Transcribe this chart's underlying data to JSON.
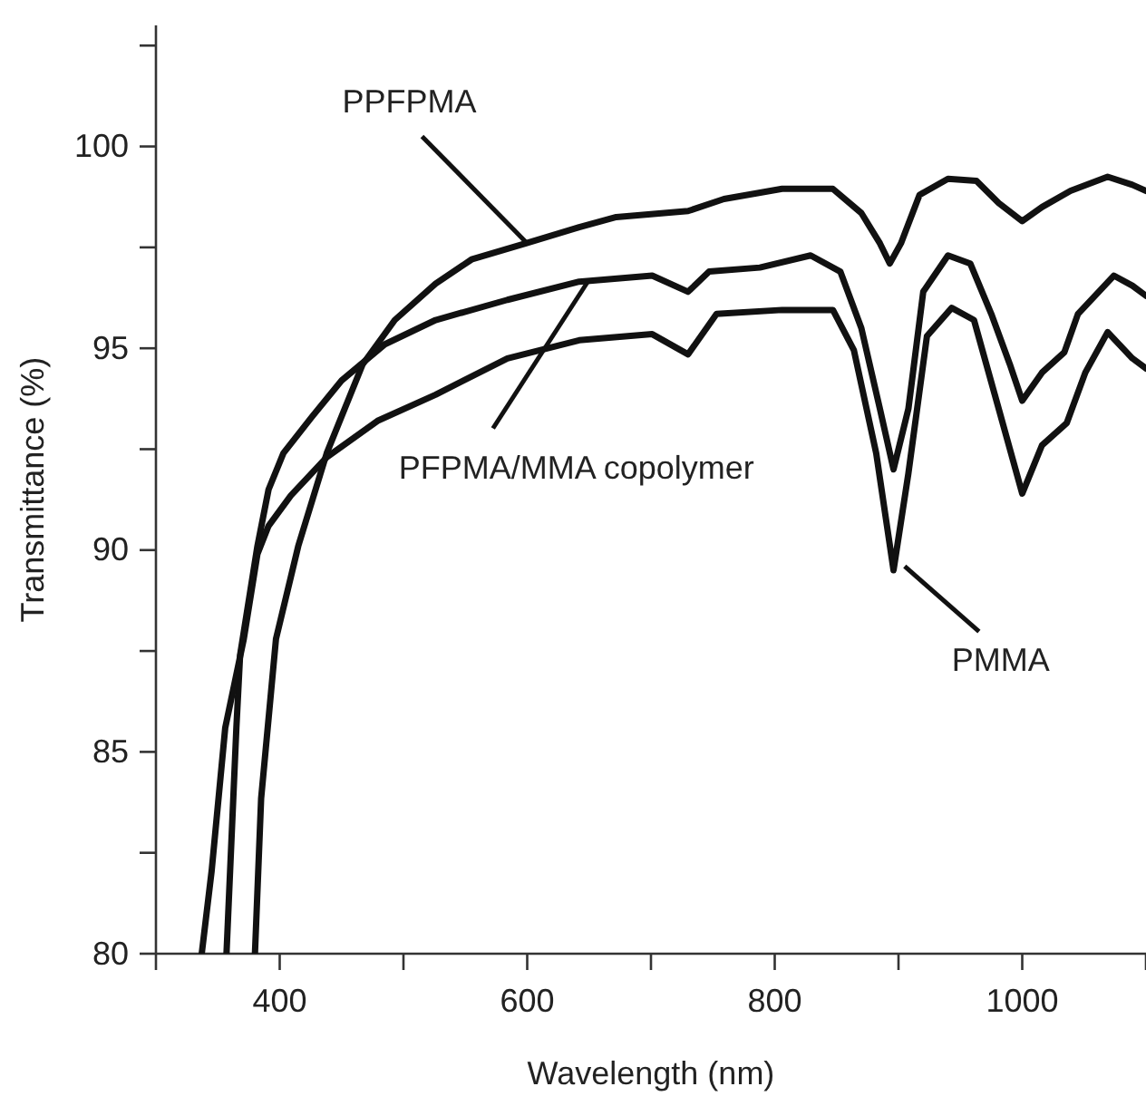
{
  "chart_data": {
    "type": "line",
    "xlabel": "Wavelength (nm)",
    "ylabel": "Transmittance (%)",
    "xlim": [
      300,
      1100
    ],
    "ylim": [
      80,
      103
    ],
    "xticks": [
      {
        "value": 300,
        "label": null
      },
      400,
      {
        "value": 500,
        "label": null
      },
      600,
      {
        "value": 700,
        "label": null
      },
      800,
      {
        "value": 900,
        "label": null
      },
      1000,
      {
        "value": 1100,
        "label": null
      }
    ],
    "yticks": [
      80,
      {
        "value": 82.5,
        "label": null
      },
      85,
      {
        "value": 87.5,
        "label": null
      },
      90,
      {
        "value": 92.5,
        "label": null
      },
      95,
      {
        "value": 97.5,
        "label": null
      },
      100,
      {
        "value": 102.5,
        "label": null
      }
    ],
    "grid": false,
    "marker": "none",
    "line_style": "solid",
    "series": [
      {
        "color": "#111111",
        "x": [
          380,
          385,
          397,
          415,
          438,
          467,
          493,
          526,
          555,
          599,
          642,
          672,
          730,
          759,
          806,
          847,
          870,
          885,
          893,
          902,
          917,
          940,
          963,
          981,
          1000,
          1016,
          1039,
          1069,
          1089,
          1100
        ],
        "values": [
          80,
          83.85,
          87.8,
          90.1,
          92.4,
          94.6,
          95.7,
          96.6,
          97.2,
          97.6,
          98.0,
          98.25,
          98.4,
          98.7,
          98.95,
          98.95,
          98.35,
          97.6,
          97.1,
          97.6,
          98.8,
          99.2,
          99.15,
          98.6,
          98.15,
          98.5,
          98.9,
          99.25,
          99.05,
          98.9
        ]
      },
      {
        "color": "#111111",
        "x": [
          357,
          365,
          368,
          382,
          391,
          403,
          426,
          450,
          485,
          526,
          584,
          642,
          701,
          730,
          747,
          788,
          829,
          853,
          870,
          885,
          896,
          908,
          920,
          940,
          958,
          975,
          990,
          1000,
          1016,
          1034,
          1045,
          1074,
          1089,
          1100
        ],
        "values": [
          80,
          85.6,
          87.4,
          90.1,
          91.5,
          92.4,
          93.3,
          94.2,
          95.1,
          95.7,
          96.2,
          96.65,
          96.8,
          96.4,
          96.9,
          97.0,
          97.3,
          96.9,
          95.5,
          93.5,
          92.0,
          93.5,
          96.4,
          97.3,
          97.1,
          95.85,
          94.6,
          93.7,
          94.4,
          94.9,
          95.85,
          96.8,
          96.55,
          96.3
        ]
      },
      {
        "color": "#111111",
        "x": [
          337,
          345,
          356,
          371,
          382,
          391,
          409,
          438,
          479,
          526,
          584,
          642,
          701,
          730,
          753,
          806,
          847,
          864,
          882,
          896,
          908,
          923,
          943,
          961,
          981,
          1000,
          1016,
          1036,
          1051,
          1069,
          1089,
          1100
        ],
        "values": [
          80,
          82.05,
          85.6,
          87.8,
          89.9,
          90.6,
          91.35,
          92.3,
          93.2,
          93.85,
          94.75,
          95.2,
          95.35,
          94.85,
          95.85,
          95.95,
          95.95,
          94.95,
          92.4,
          89.5,
          91.9,
          95.3,
          96.0,
          95.7,
          93.5,
          91.4,
          92.6,
          93.15,
          94.4,
          95.4,
          94.75,
          94.5
        ]
      }
    ],
    "annotations": [
      {
        "text": "PPFPMA",
        "x": 600,
        "y": 97.6
      },
      {
        "text": "PFPMA/MMA copolymer",
        "x": 650,
        "y": 96.7
      },
      {
        "text": "PMMA",
        "x": 905,
        "y": 89.6
      }
    ]
  }
}
